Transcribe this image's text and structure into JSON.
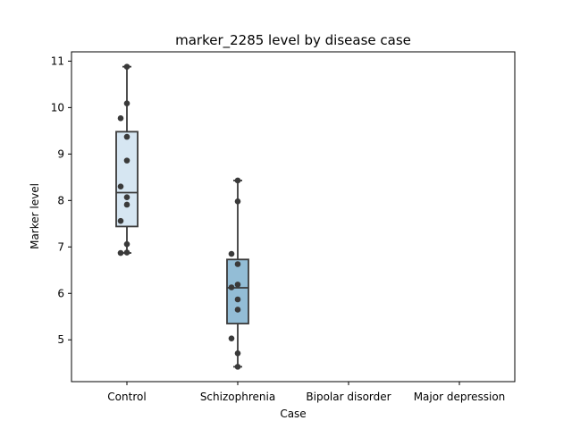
{
  "chart_data": {
    "type": "box",
    "title": "marker_2285 level by disease case",
    "xlabel": "Case",
    "ylabel": "Marker level",
    "categories": [
      "Control",
      "Schizophrenia",
      "Bipolar disorder",
      "Major depression"
    ],
    "ylim": [
      4.1,
      11.2
    ],
    "yticks": [
      5,
      6,
      7,
      8,
      9,
      10,
      11
    ],
    "grid": false,
    "series": [
      {
        "category": "Control",
        "box": {
          "whisker_low": 6.87,
          "q1": 7.44,
          "median": 8.17,
          "q3": 9.48,
          "whisker_high": 10.88
        },
        "box_color": "#d6e6f2",
        "points": [
          10.88,
          10.09,
          9.77,
          9.37,
          8.86,
          8.3,
          8.07,
          7.91,
          7.56,
          7.06,
          6.88,
          6.87
        ]
      },
      {
        "category": "Schizophrenia",
        "box": {
          "whisker_low": 4.42,
          "q1": 5.35,
          "median": 6.12,
          "q3": 6.73,
          "whisker_high": 8.43
        },
        "box_color": "#93bdd6",
        "points": [
          8.43,
          7.98,
          6.85,
          6.63,
          6.19,
          6.13,
          5.87,
          5.65,
          5.03,
          4.71,
          4.42
        ]
      },
      {
        "category": "Bipolar disorder",
        "points": []
      },
      {
        "category": "Major depression",
        "points": []
      }
    ],
    "colors": {
      "edge": "#3a3a3a",
      "point": "#3a3a3a"
    }
  }
}
